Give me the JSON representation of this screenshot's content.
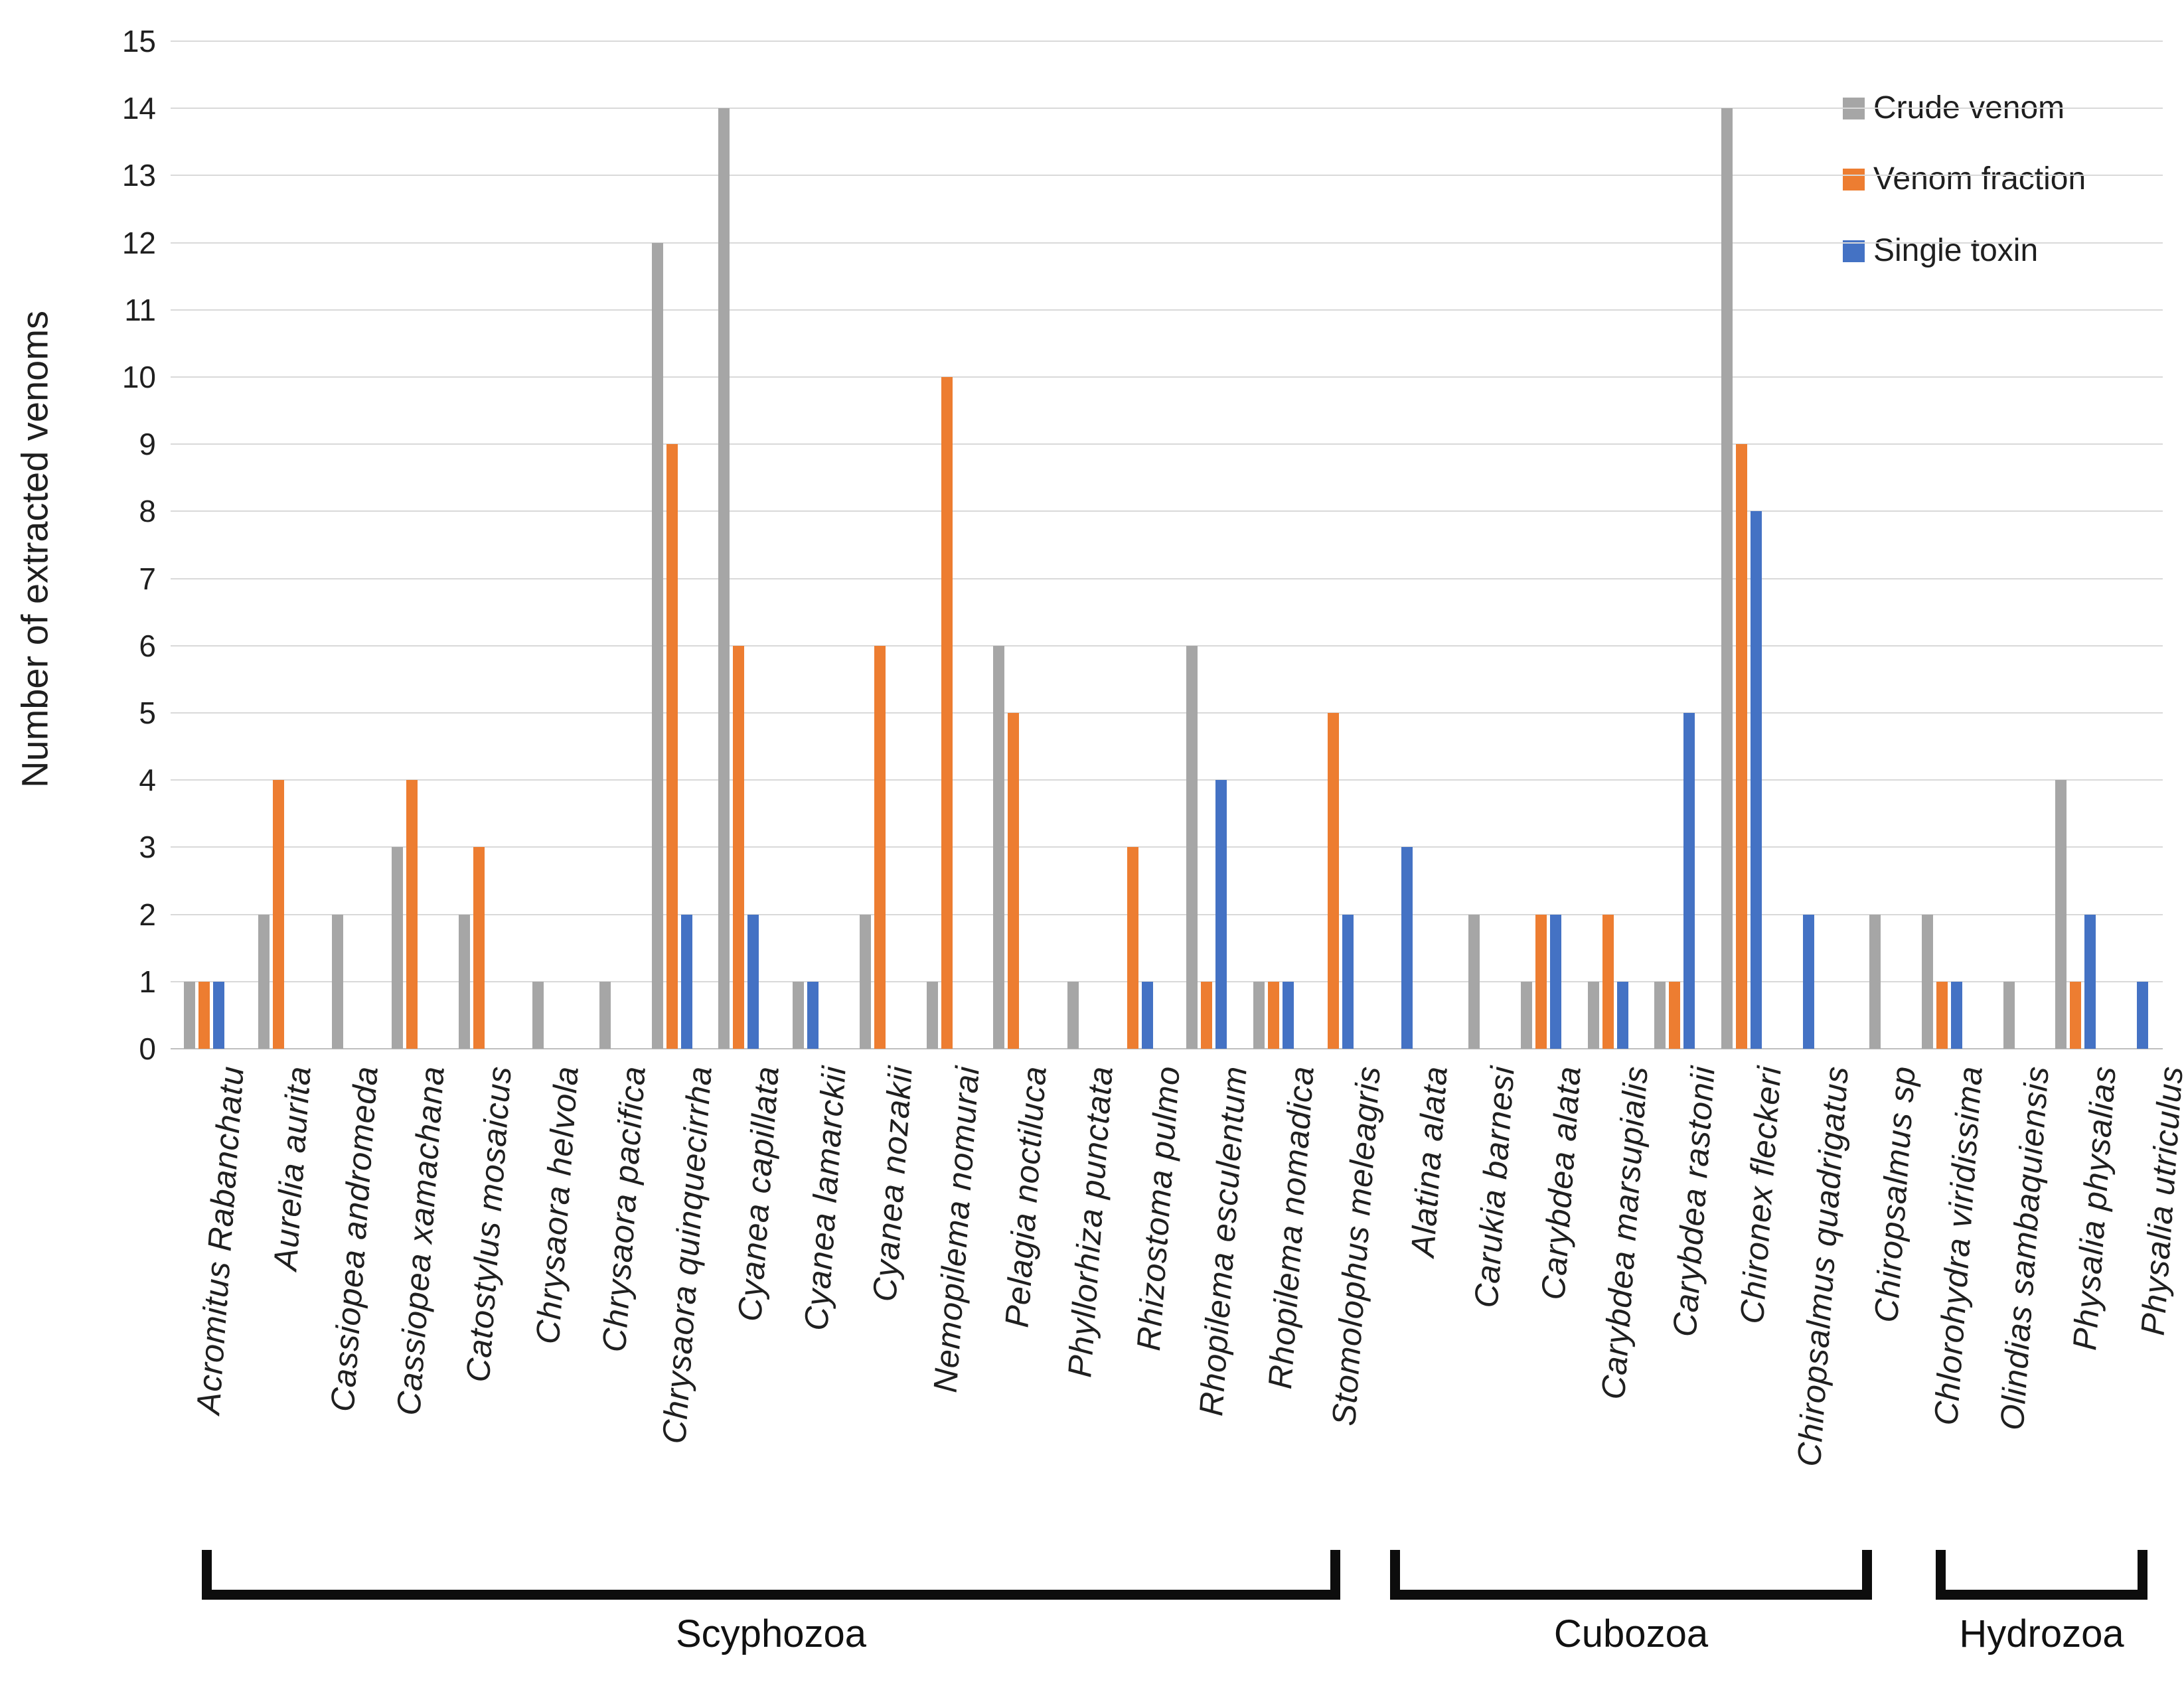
{
  "chart_data": {
    "type": "bar",
    "title": "",
    "xlabel": "",
    "ylabel": "Number of extracted venoms",
    "ylim": [
      0,
      15
    ],
    "ytick_step": 1,
    "grid": "horizontal",
    "legend_position": "top-right",
    "series_meta": [
      {
        "name": "Crude venom",
        "color": "#A6A6A6"
      },
      {
        "name": "Venom fraction",
        "color": "#ED7D31"
      },
      {
        "name": "Single toxin",
        "color": "#4472C4"
      }
    ],
    "groups": [
      {
        "name": "Scyphozoa",
        "species": [
          {
            "label": "Acromitus Rabanchatu",
            "values": [
              1,
              1,
              1
            ]
          },
          {
            "label": "Aurelia aurita",
            "values": [
              2,
              4,
              0
            ]
          },
          {
            "label": "Cassiopea andromeda",
            "values": [
              2,
              0,
              0
            ]
          },
          {
            "label": "Cassiopea xamachana",
            "values": [
              3,
              4,
              0
            ]
          },
          {
            "label": "Catostylus mosaicus",
            "values": [
              2,
              3,
              0
            ]
          },
          {
            "label": "Chrysaora helvola",
            "values": [
              1,
              0,
              0
            ]
          },
          {
            "label": "Chrysaora pacifica",
            "values": [
              1,
              0,
              0
            ]
          },
          {
            "label": "Chrysaora quinquecirrha",
            "values": [
              12,
              9,
              2
            ]
          },
          {
            "label": "Cyanea capillata",
            "values": [
              14,
              6,
              2
            ]
          },
          {
            "label": "Cyanea lamarckii",
            "values": [
              1,
              0,
              1
            ]
          },
          {
            "label": "Cyanea nozakii",
            "values": [
              2,
              6,
              0
            ]
          },
          {
            "label": "Nemopilema nomurai",
            "values": [
              1,
              10,
              0
            ]
          },
          {
            "label": "Pelagia noctiluca",
            "values": [
              6,
              5,
              0
            ]
          },
          {
            "label": "Phyllorhiza punctata",
            "values": [
              1,
              0,
              0
            ]
          },
          {
            "label": "Rhizostoma pulmo",
            "values": [
              0,
              3,
              1
            ]
          },
          {
            "label": "Rhopilema esculentum",
            "values": [
              6,
              1,
              4
            ]
          },
          {
            "label": "Rhopilema nomadica",
            "values": [
              1,
              1,
              1
            ]
          },
          {
            "label": "Stomolophus meleagris",
            "values": [
              0,
              5,
              2
            ]
          }
        ]
      },
      {
        "name": "Cubozoa",
        "species": [
          {
            "label": "Alatina alata",
            "values": [
              0,
              0,
              3
            ]
          },
          {
            "label": "Carukia barnesi",
            "values": [
              2,
              0,
              0
            ]
          },
          {
            "label": "Carybdea alata",
            "values": [
              1,
              2,
              2
            ]
          },
          {
            "label": "Carybdea marsupialis",
            "values": [
              1,
              2,
              1
            ]
          },
          {
            "label": "Carybdea rastonii",
            "values": [
              1,
              1,
              5
            ]
          },
          {
            "label": "Chironex fleckeri",
            "values": [
              14,
              9,
              8
            ]
          },
          {
            "label": "Chiropsalmus quadrigatus",
            "values": [
              0,
              0,
              2
            ]
          },
          {
            "label": "Chiropsalmus sp",
            "values": [
              2,
              0,
              0
            ]
          }
        ]
      },
      {
        "name": "Hydrozoa",
        "species": [
          {
            "label": "Chlorohydra viridissima",
            "values": [
              2,
              1,
              1
            ]
          },
          {
            "label": "Olindias sambaquiensis",
            "values": [
              1,
              0,
              0
            ]
          },
          {
            "label": "Physalia physalias",
            "values": [
              4,
              1,
              2
            ]
          },
          {
            "label": "Physalia utriculus",
            "values": [
              0,
              0,
              1
            ]
          }
        ]
      }
    ]
  }
}
